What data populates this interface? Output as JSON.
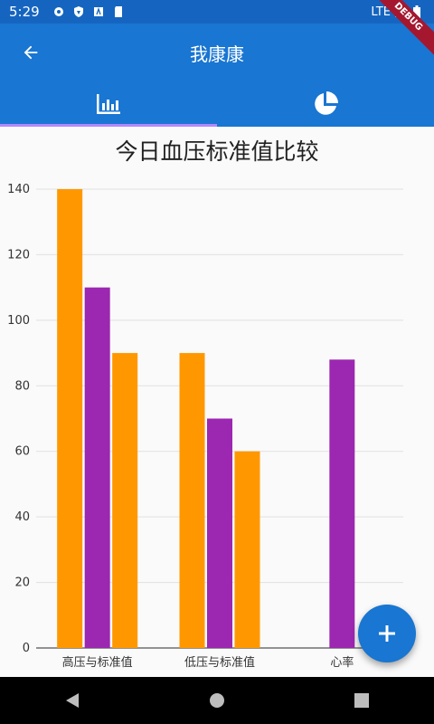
{
  "status_bar": {
    "time": "5:29",
    "network": "LTE",
    "left_icons": [
      "gear-icon",
      "shield-icon",
      "a-box-icon",
      "sd-card-icon"
    ]
  },
  "debug_banner": "DEBUG",
  "app_bar": {
    "title": "我康康",
    "back_icon": "arrow-back-icon"
  },
  "tabs": [
    {
      "icon": "bar-chart-icon",
      "selected": true
    },
    {
      "icon": "pie-chart-icon",
      "selected": false
    }
  ],
  "colors": {
    "primary": "#1976d2",
    "status": "#1565c0",
    "orange": "#ff9800",
    "purple": "#9c27b0",
    "indicator": "#b388ff"
  },
  "chart_data": {
    "type": "bar",
    "title": "今日血压标准值比较",
    "categories": [
      "高压与标准值",
      "低压与标准值",
      "心率"
    ],
    "series": [
      {
        "values": [
          140,
          90,
          null
        ],
        "color": "#ff9800"
      },
      {
        "values": [
          110,
          70,
          88
        ],
        "color": "#9c27b0"
      },
      {
        "values": [
          90,
          60,
          null
        ],
        "color": "#ff9800"
      }
    ],
    "ylim": [
      0,
      140
    ],
    "y_ticks": [
      "0",
      "20",
      "40",
      "60",
      "80",
      "100",
      "120",
      "140"
    ],
    "grid": true
  },
  "fab": {
    "icon": "plus-icon"
  },
  "nav": [
    "back-triangle-icon",
    "home-circle-icon",
    "recents-square-icon"
  ]
}
